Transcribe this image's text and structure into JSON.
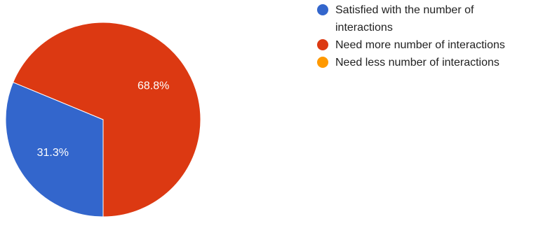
{
  "chart_data": {
    "type": "pie",
    "title": "",
    "start_angle_deg": 90,
    "direction": "clockwise",
    "legend_position": "right",
    "slices": [
      {
        "label": "Satisfied with the number of interactions",
        "value": 31.3,
        "display": "31.3%",
        "color": "#3366cc"
      },
      {
        "label": "Need more number of interactions",
        "value": 68.8,
        "display": "68.8%",
        "color": "#dc3912"
      },
      {
        "label": "Need less number of interactions",
        "value": 0,
        "display": "",
        "color": "#ff9900"
      }
    ]
  }
}
